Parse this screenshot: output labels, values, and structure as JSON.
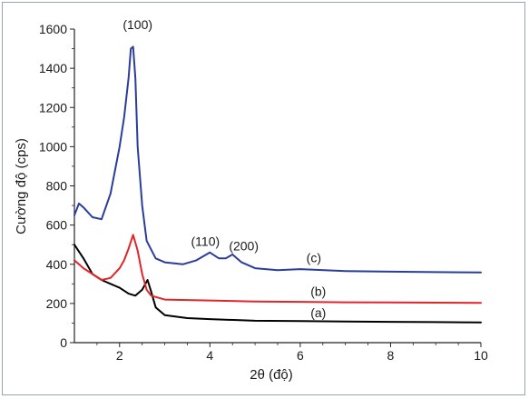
{
  "chart_data": {
    "type": "line",
    "xlabel": "2θ (độ)",
    "ylabel": "Cường độ (cps)",
    "xlim": [
      1,
      10
    ],
    "ylim": [
      0,
      1600
    ],
    "xticks": [
      "2",
      "4",
      "6",
      "8",
      "10"
    ],
    "yticks": [
      "0",
      "200",
      "400",
      "600",
      "800",
      "1000",
      "1200",
      "1400",
      "1600"
    ],
    "grid": false,
    "series": [
      {
        "name": "(a)",
        "color": "#000000",
        "x": [
          1.0,
          1.2,
          1.4,
          1.6,
          1.8,
          2.0,
          2.2,
          2.35,
          2.5,
          2.62,
          2.7,
          2.8,
          3.0,
          3.5,
          4.0,
          5.0,
          6.0,
          7.0,
          8.0,
          9.0,
          10.0
        ],
        "y": [
          500,
          430,
          350,
          320,
          300,
          280,
          250,
          240,
          270,
          320,
          260,
          180,
          140,
          125,
          120,
          112,
          110,
          108,
          106,
          105,
          103
        ]
      },
      {
        "name": "(b)",
        "color": "#e0262a",
        "x": [
          1.0,
          1.2,
          1.4,
          1.6,
          1.8,
          2.0,
          2.1,
          2.2,
          2.3,
          2.4,
          2.5,
          2.6,
          2.7,
          3.0,
          4.0,
          5.0,
          6.0,
          7.0,
          8.0,
          9.0,
          10.0
        ],
        "y": [
          420,
          380,
          350,
          320,
          330,
          380,
          420,
          480,
          550,
          470,
          350,
          270,
          240,
          220,
          215,
          210,
          208,
          206,
          205,
          204,
          203
        ]
      },
      {
        "name": "(c)",
        "color": "#2b3d9c",
        "x": [
          1.0,
          1.1,
          1.2,
          1.4,
          1.6,
          1.8,
          2.0,
          2.1,
          2.2,
          2.25,
          2.3,
          2.35,
          2.4,
          2.5,
          2.6,
          2.8,
          3.0,
          3.4,
          3.7,
          4.0,
          4.2,
          4.35,
          4.5,
          4.7,
          5.0,
          5.5,
          6.0,
          7.0,
          8.0,
          9.0,
          10.0
        ],
        "y": [
          650,
          710,
          690,
          640,
          630,
          760,
          1000,
          1150,
          1350,
          1500,
          1510,
          1350,
          1000,
          700,
          520,
          430,
          410,
          400,
          420,
          460,
          430,
          430,
          450,
          410,
          380,
          370,
          375,
          365,
          362,
          360,
          358
        ]
      }
    ],
    "annotations": [
      {
        "text": "(100)",
        "x": 2.4,
        "y": 1600
      },
      {
        "text": "(110)",
        "x": 3.9,
        "y": 495
      },
      {
        "text": "(200)",
        "x": 4.75,
        "y": 470
      },
      {
        "text": "(c)",
        "x": 6.3,
        "y": 410
      },
      {
        "text": "(b)",
        "x": 6.4,
        "y": 240
      },
      {
        "text": "(a)",
        "x": 6.4,
        "y": 130
      }
    ]
  }
}
